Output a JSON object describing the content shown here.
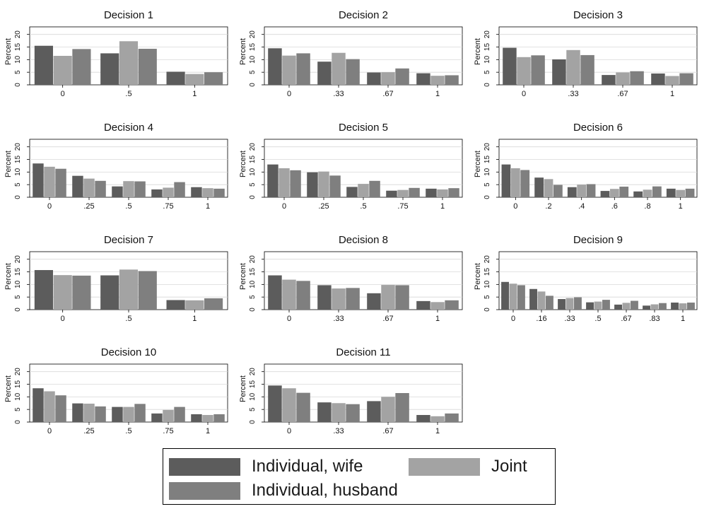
{
  "series_colors": [
    "#5c5c5c",
    "#a3a3a3",
    "#7f7f7f"
  ],
  "chart_data": [
    {
      "type": "bar",
      "title": "Decision 1",
      "ylabel": "Percent",
      "yticks": [
        0,
        5,
        10,
        15,
        20
      ],
      "ylim": [
        0,
        23
      ],
      "categories": [
        "0",
        ".5",
        "1"
      ],
      "series": [
        {
          "name": "Individual, wife",
          "values": [
            15.5,
            12.5,
            5.2
          ]
        },
        {
          "name": "Joint",
          "values": [
            11.5,
            17.3,
            4.3
          ]
        },
        {
          "name": "Individual, husband",
          "values": [
            14.2,
            14.3,
            5
          ]
        }
      ]
    },
    {
      "type": "bar",
      "title": "Decision 2",
      "ylabel": "Percent",
      "yticks": [
        0,
        5,
        10,
        15,
        20
      ],
      "ylim": [
        0,
        23
      ],
      "categories": [
        "0",
        ".33",
        ".67",
        "1"
      ],
      "series": [
        {
          "name": "Individual, wife",
          "values": [
            14.5,
            9.2,
            4.9,
            4.6
          ]
        },
        {
          "name": "Joint",
          "values": [
            11.6,
            12.7,
            5,
            3.6
          ]
        },
        {
          "name": "Individual, husband",
          "values": [
            12.5,
            10.2,
            6.5,
            3.8
          ]
        }
      ]
    },
    {
      "type": "bar",
      "title": "Decision 3",
      "ylabel": "Percent",
      "yticks": [
        0,
        5,
        10,
        15,
        20
      ],
      "ylim": [
        0,
        23
      ],
      "categories": [
        "0",
        ".33",
        ".67",
        "1"
      ],
      "series": [
        {
          "name": "Individual, wife",
          "values": [
            14.7,
            10.1,
            3.9,
            4.5
          ]
        },
        {
          "name": "Joint",
          "values": [
            11,
            13.8,
            4.9,
            3.5
          ]
        },
        {
          "name": "Individual, husband",
          "values": [
            11.7,
            11.8,
            5.4,
            4.6
          ]
        }
      ]
    },
    {
      "type": "bar",
      "title": "Decision 4",
      "ylabel": "Percent",
      "yticks": [
        0,
        5,
        10,
        15,
        20
      ],
      "ylim": [
        0,
        23
      ],
      "categories": [
        "0",
        ".25",
        ".5",
        ".75",
        "1"
      ],
      "series": [
        {
          "name": "Individual, wife",
          "values": [
            13.4,
            8.5,
            4.3,
            3.1,
            4
          ]
        },
        {
          "name": "Joint",
          "values": [
            12.1,
            7.4,
            6.4,
            3.8,
            3.6
          ]
        },
        {
          "name": "Individual, husband",
          "values": [
            11.3,
            6.5,
            6.3,
            6,
            3.4
          ]
        }
      ]
    },
    {
      "type": "bar",
      "title": "Decision 5",
      "ylabel": "Percent",
      "yticks": [
        0,
        5,
        10,
        15,
        20
      ],
      "ylim": [
        0,
        23
      ],
      "categories": [
        "0",
        ".25",
        ".5",
        ".75",
        "1"
      ],
      "series": [
        {
          "name": "Individual, wife",
          "values": [
            13,
            9.9,
            4.1,
            2.6,
            3.4
          ]
        },
        {
          "name": "Joint",
          "values": [
            11.5,
            10.2,
            5.3,
            2.9,
            3.1
          ]
        },
        {
          "name": "Individual, husband",
          "values": [
            10.7,
            8.6,
            6.5,
            3.7,
            3.6
          ]
        }
      ]
    },
    {
      "type": "bar",
      "title": "Decision 6",
      "ylabel": "Percent",
      "yticks": [
        0,
        5,
        10,
        15,
        20
      ],
      "ylim": [
        0,
        23
      ],
      "categories": [
        "0",
        ".2",
        ".4",
        ".6",
        ".8",
        "1"
      ],
      "series": [
        {
          "name": "Individual, wife",
          "values": [
            13,
            7.8,
            4,
            2.5,
            2.3,
            3.4
          ]
        },
        {
          "name": "Joint",
          "values": [
            11.5,
            7.2,
            5,
            3.3,
            3,
            2.9
          ]
        },
        {
          "name": "Individual, husband",
          "values": [
            10.8,
            4.9,
            5.2,
            4.2,
            4.3,
            3.4
          ]
        }
      ]
    },
    {
      "type": "bar",
      "title": "Decision 7",
      "ylabel": "Percent",
      "yticks": [
        0,
        5,
        10,
        15,
        20
      ],
      "ylim": [
        0,
        23
      ],
      "categories": [
        "0",
        ".5",
        "1"
      ],
      "series": [
        {
          "name": "Individual, wife",
          "values": [
            15.7,
            13.6,
            3.8
          ]
        },
        {
          "name": "Joint",
          "values": [
            13.7,
            15.9,
            3.7
          ]
        },
        {
          "name": "Individual, husband",
          "values": [
            13.5,
            15.3,
            4.5
          ]
        }
      ]
    },
    {
      "type": "bar",
      "title": "Decision 8",
      "ylabel": "Percent",
      "yticks": [
        0,
        5,
        10,
        15,
        20
      ],
      "ylim": [
        0,
        23
      ],
      "categories": [
        "0",
        ".33",
        ".67",
        "1"
      ],
      "series": [
        {
          "name": "Individual, wife",
          "values": [
            13.6,
            9.7,
            6.5,
            3.4
          ]
        },
        {
          "name": "Joint",
          "values": [
            11.9,
            8.4,
            9.8,
            3
          ]
        },
        {
          "name": "Individual, husband",
          "values": [
            11.4,
            8.6,
            9.7,
            3.7
          ]
        }
      ]
    },
    {
      "type": "bar",
      "title": "Decision 9",
      "ylabel": "Percent",
      "yticks": [
        0,
        5,
        10,
        15,
        20
      ],
      "ylim": [
        0,
        23
      ],
      "categories": [
        "0",
        ".16",
        ".33",
        ".5",
        ".67",
        ".83",
        "1"
      ],
      "series": [
        {
          "name": "Individual, wife",
          "values": [
            11,
            8.2,
            4.2,
            2.9,
            2,
            1.6,
            2.8
          ]
        },
        {
          "name": "Joint",
          "values": [
            10.3,
            7.2,
            4.6,
            3.2,
            2.7,
            2.1,
            2.5
          ]
        },
        {
          "name": "Individual, husband",
          "values": [
            9.7,
            5.5,
            4.9,
            3.9,
            3.5,
            2.6,
            2.8
          ]
        }
      ]
    },
    {
      "type": "bar",
      "title": "Decision 10",
      "ylabel": "Percent",
      "yticks": [
        0,
        5,
        10,
        15,
        20
      ],
      "ylim": [
        0,
        23
      ],
      "categories": [
        "0",
        ".25",
        ".5",
        ".75",
        "1"
      ],
      "series": [
        {
          "name": "Individual, wife",
          "values": [
            13.4,
            7.4,
            6,
            3.4,
            3.1
          ]
        },
        {
          "name": "Joint",
          "values": [
            12.2,
            7.3,
            6,
            4.8,
            2.8
          ]
        },
        {
          "name": "Individual, husband",
          "values": [
            10.6,
            6.2,
            7.2,
            6,
            3.1
          ]
        }
      ]
    },
    {
      "type": "bar",
      "title": "Decision 11",
      "ylabel": "Percent",
      "yticks": [
        0,
        5,
        10,
        15,
        20
      ],
      "ylim": [
        0,
        23
      ],
      "categories": [
        "0",
        ".33",
        ".67",
        "1"
      ],
      "series": [
        {
          "name": "Individual, wife",
          "values": [
            14.5,
            7.8,
            8.3,
            2.8
          ]
        },
        {
          "name": "Joint",
          "values": [
            13.4,
            7.5,
            10,
            2.3
          ]
        },
        {
          "name": "Individual, husband",
          "values": [
            11.6,
            7.1,
            11.5,
            3.4
          ]
        }
      ]
    }
  ],
  "legend": {
    "placement": "bottom-center",
    "items": [
      {
        "label": "Individual, wife"
      },
      {
        "label": "Joint"
      },
      {
        "label": "Individual, husband"
      }
    ]
  }
}
